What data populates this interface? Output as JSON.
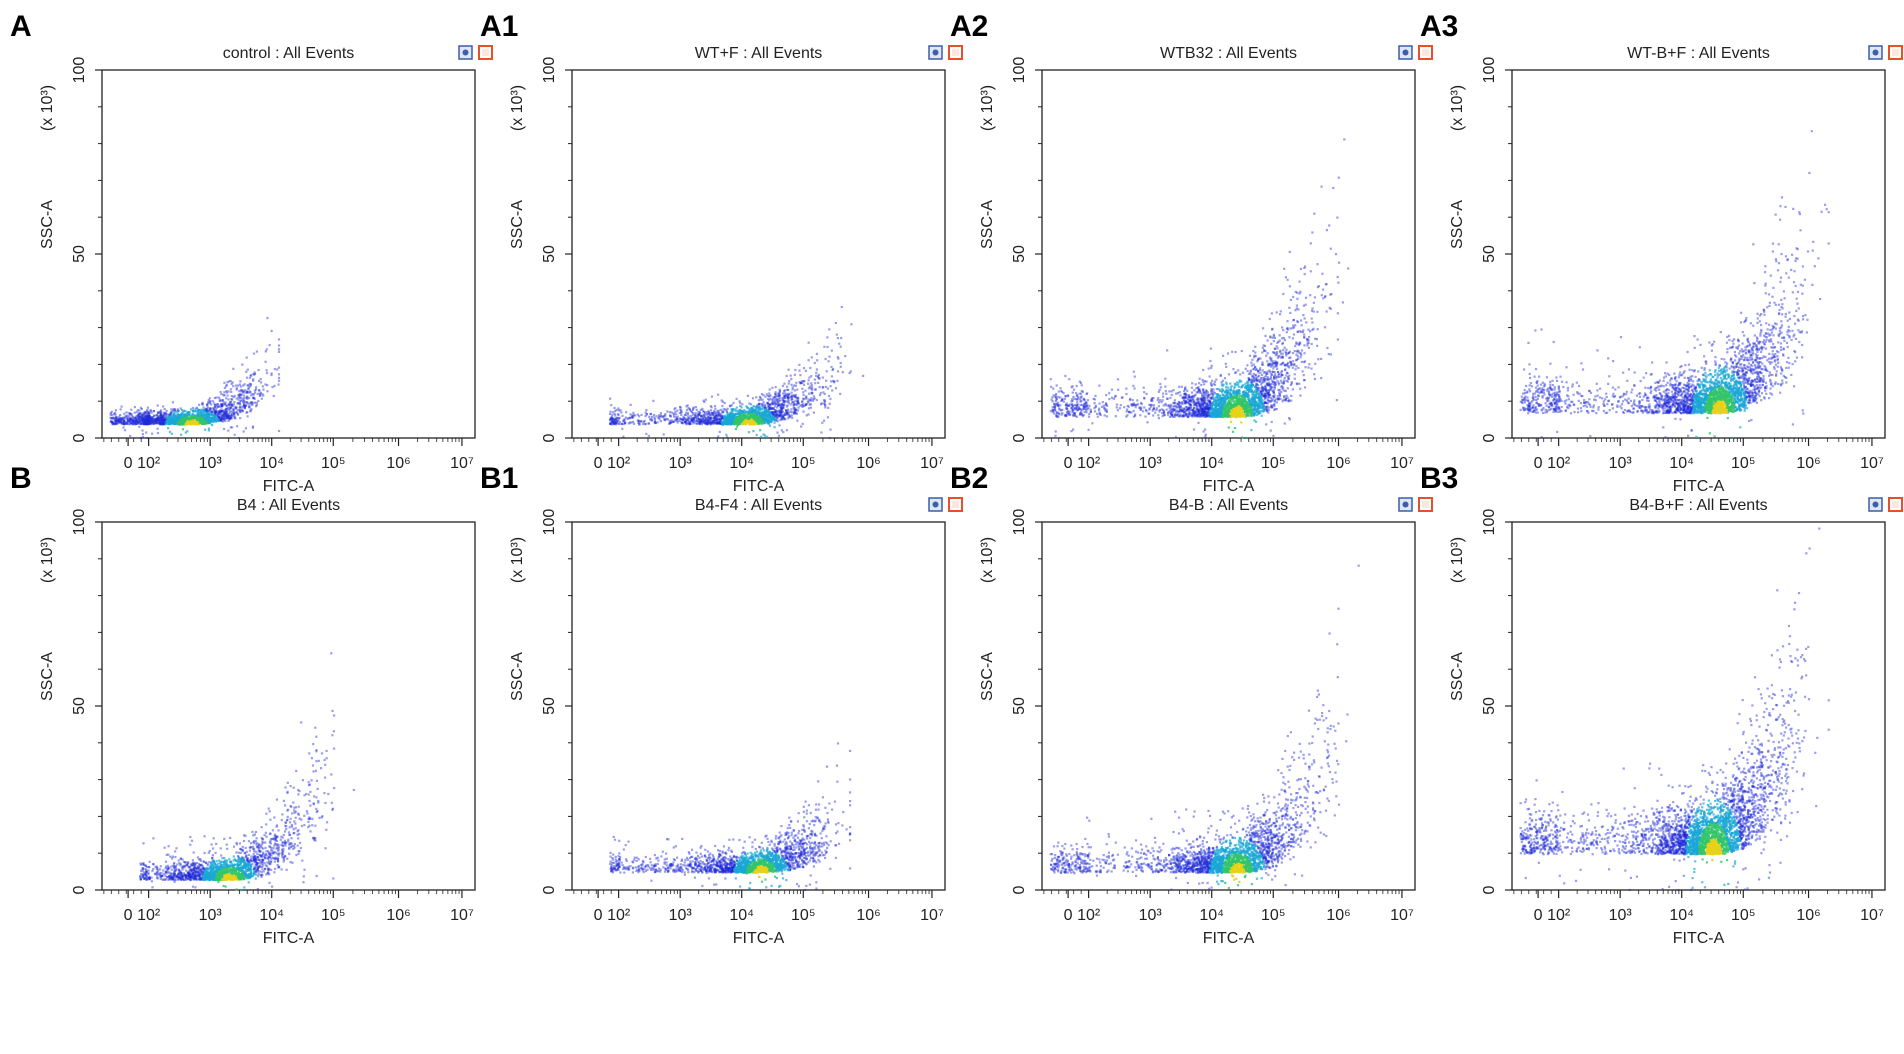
{
  "figure": {
    "panels_layout": [
      [
        "A",
        "A1",
        "A2",
        "A3"
      ],
      [
        "B",
        "B1",
        "B2",
        "B3"
      ]
    ],
    "icons": [
      "gate-icon",
      "close-icon"
    ],
    "icon_colors": {
      "gate": "#3b5fa8",
      "close": "#e8502a"
    }
  },
  "chart_data": [
    {
      "id": "A",
      "panel_label": "A",
      "type": "scatter",
      "title": "control : All Events",
      "xlabel": "FITC-A",
      "ylabel": "SSC-A",
      "yexponent": "(x 10³)",
      "x_scale": "biexponential",
      "x_ticks": [
        "0",
        "10²",
        "10³",
        "10⁴",
        "10⁵",
        "10⁶",
        "10⁷"
      ],
      "y_ticks": [
        "0",
        "50",
        "100"
      ],
      "ylim": [
        0,
        100
      ],
      "density_color": "#1f2bd6",
      "show_icons": true,
      "population": {
        "center_log10_x": 2.7,
        "center_y": 4,
        "min_log10_x": 0,
        "max_log10_x": 3.8,
        "y_growth": 4.5,
        "spread_y": 4,
        "events": 1800
      }
    },
    {
      "id": "A1",
      "panel_label": "A1",
      "type": "scatter",
      "title": "WT+F : All Events",
      "xlabel": "FITC-A",
      "ylabel": "SSC-A",
      "yexponent": "(x 10³)",
      "x_scale": "biexponential",
      "x_ticks": [
        "0",
        "10²",
        "10³",
        "10⁴",
        "10⁵",
        "10⁶",
        "10⁷"
      ],
      "y_ticks": [
        "0",
        "50",
        "100"
      ],
      "ylim": [
        0,
        100
      ],
      "density_color": "#1f2bd6",
      "show_icons": true,
      "population": {
        "center_log10_x": 4.1,
        "center_y": 4,
        "min_log10_x": 1.5,
        "max_log10_x": 5.6,
        "y_growth": 4.0,
        "spread_y": 5,
        "events": 1800
      }
    },
    {
      "id": "A2",
      "panel_label": "A2",
      "type": "scatter",
      "title": "WTB32 : All Events",
      "xlabel": "FITC-A",
      "ylabel": "SSC-A",
      "yexponent": "(x 10³)",
      "x_scale": "biexponential",
      "x_ticks": [
        "0",
        "10²",
        "10³",
        "10⁴",
        "10⁵",
        "10⁶",
        "10⁷"
      ],
      "y_ticks": [
        "0",
        "50",
        "100"
      ],
      "ylim": [
        0,
        100
      ],
      "density_color": "#1f2bd6",
      "show_icons": true,
      "population": {
        "center_log10_x": 4.4,
        "center_y": 6,
        "min_log10_x": 0,
        "max_log10_x": 6.0,
        "y_growth": 9.0,
        "spread_y": 10,
        "events": 2600
      }
    },
    {
      "id": "A3",
      "panel_label": "A3",
      "type": "scatter",
      "title": "WT-B+F : All Events",
      "xlabel": "FITC-A",
      "ylabel": "SSC-A",
      "yexponent": "(x 10³)",
      "x_scale": "biexponential",
      "x_ticks": [
        "0",
        "10²",
        "10³",
        "10⁴",
        "10⁵",
        "10⁶",
        "10⁷"
      ],
      "y_ticks": [
        "0",
        "50",
        "100"
      ],
      "ylim": [
        0,
        100
      ],
      "density_color": "#1f2bd6",
      "show_icons": true,
      "population": {
        "center_log10_x": 4.6,
        "center_y": 7,
        "min_log10_x": 0,
        "max_log10_x": 6.0,
        "y_growth": 10.0,
        "spread_y": 12,
        "events": 2800
      }
    },
    {
      "id": "B",
      "panel_label": "B",
      "type": "scatter",
      "title": "B4 : All Events",
      "xlabel": "FITC-A",
      "ylabel": "SSC-A",
      "yexponent": "(x 10³)",
      "x_scale": "biexponential",
      "x_ticks": [
        "0",
        "10²",
        "10³",
        "10⁴",
        "10⁵",
        "10⁶",
        "10⁷"
      ],
      "y_ticks": [
        "0",
        "50",
        "100"
      ],
      "ylim": [
        0,
        100
      ],
      "density_color": "#1f2bd6",
      "show_icons": false,
      "population": {
        "center_log10_x": 3.3,
        "center_y": 3,
        "min_log10_x": 1.5,
        "max_log10_x": 5.0,
        "y_growth": 6.5,
        "spread_y": 6,
        "events": 1700
      }
    },
    {
      "id": "B1",
      "panel_label": "B1",
      "type": "scatter",
      "title": "B4-F4 : All Events",
      "xlabel": "FITC-A",
      "ylabel": "SSC-A",
      "yexponent": "(x 10³)",
      "x_scale": "biexponential",
      "x_ticks": [
        "0",
        "10²",
        "10³",
        "10⁴",
        "10⁵",
        "10⁶",
        "10⁷"
      ],
      "y_ticks": [
        "0",
        "50",
        "100"
      ],
      "ylim": [
        0,
        100
      ],
      "density_color": "#1f2bd6",
      "show_icons": true,
      "population": {
        "center_log10_x": 4.3,
        "center_y": 5,
        "min_log10_x": 1.5,
        "max_log10_x": 5.4,
        "y_growth": 3.5,
        "spread_y": 6,
        "events": 1900
      }
    },
    {
      "id": "B2",
      "panel_label": "B2",
      "type": "scatter",
      "title": "B4-B : All Events",
      "xlabel": "FITC-A",
      "ylabel": "SSC-A",
      "yexponent": "(x 10³)",
      "x_scale": "biexponential",
      "x_ticks": [
        "0",
        "10²",
        "10³",
        "10⁴",
        "10⁵",
        "10⁶",
        "10⁷"
      ],
      "y_ticks": [
        "0",
        "50",
        "100"
      ],
      "ylim": [
        0,
        100
      ],
      "density_color": "#1f2bd6",
      "show_icons": true,
      "population": {
        "center_log10_x": 4.4,
        "center_y": 5,
        "min_log10_x": 0,
        "max_log10_x": 6.0,
        "y_growth": 8.0,
        "spread_y": 9,
        "events": 2400
      }
    },
    {
      "id": "B3",
      "panel_label": "B3",
      "type": "scatter",
      "title": "B4-B+F : All Events",
      "xlabel": "FITC-A",
      "ylabel": "SSC-A",
      "yexponent": "(x 10³)",
      "x_scale": "biexponential",
      "x_ticks": [
        "0",
        "10²",
        "10³",
        "10⁴",
        "10⁵",
        "10⁶",
        "10⁷"
      ],
      "y_ticks": [
        "0",
        "50",
        "100"
      ],
      "ylim": [
        0,
        100
      ],
      "density_color": "#1f2bd6",
      "show_icons": true,
      "population": {
        "center_log10_x": 4.5,
        "center_y": 10,
        "min_log10_x": 0,
        "max_log10_x": 6.0,
        "y_growth": 9.5,
        "spread_y": 14,
        "events": 3200
      }
    }
  ]
}
